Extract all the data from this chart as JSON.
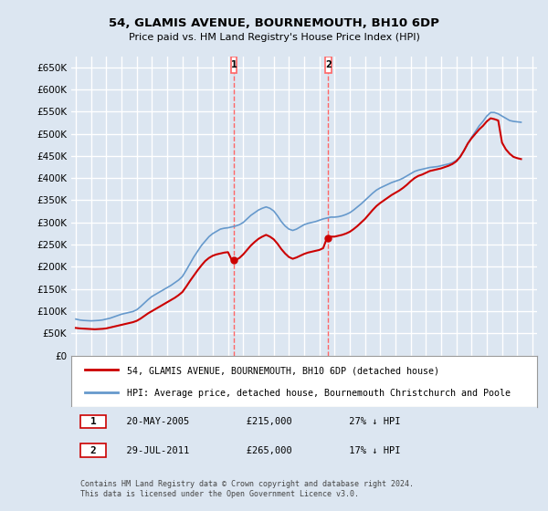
{
  "title": "54, GLAMIS AVENUE, BOURNEMOUTH, BH10 6DP",
  "subtitle": "Price paid vs. HM Land Registry's House Price Index (HPI)",
  "ylabel": "",
  "background_color": "#dce6f1",
  "plot_bg_color": "#dce6f1",
  "grid_color": "#ffffff",
  "ylim": [
    0,
    675000
  ],
  "yticks": [
    0,
    50000,
    100000,
    150000,
    200000,
    250000,
    300000,
    350000,
    400000,
    450000,
    500000,
    550000,
    600000,
    650000
  ],
  "sale1_date": 2005.38,
  "sale1_price": 215000,
  "sale2_date": 2011.57,
  "sale2_price": 265000,
  "legend_line1": "54, GLAMIS AVENUE, BOURNEMOUTH, BH10 6DP (detached house)",
  "legend_line2": "HPI: Average price, detached house, Bournemouth Christchurch and Poole",
  "annotation1": "1     20-MAY-2005          £215,000          27% ↓ HPI",
  "annotation2": "2     29-JUL-2011          £265,000          17% ↓ HPI",
  "footer": "Contains HM Land Registry data © Crown copyright and database right 2024.\nThis data is licensed under the Open Government Licence v3.0.",
  "hpi_years": [
    1995.0,
    1995.25,
    1995.5,
    1995.75,
    1996.0,
    1996.25,
    1996.5,
    1996.75,
    1997.0,
    1997.25,
    1997.5,
    1997.75,
    1998.0,
    1998.25,
    1998.5,
    1998.75,
    1999.0,
    1999.25,
    1999.5,
    1999.75,
    2000.0,
    2000.25,
    2000.5,
    2000.75,
    2001.0,
    2001.25,
    2001.5,
    2001.75,
    2002.0,
    2002.25,
    2002.5,
    2002.75,
    2003.0,
    2003.25,
    2003.5,
    2003.75,
    2004.0,
    2004.25,
    2004.5,
    2004.75,
    2005.0,
    2005.25,
    2005.5,
    2005.75,
    2006.0,
    2006.25,
    2006.5,
    2006.75,
    2007.0,
    2007.25,
    2007.5,
    2007.75,
    2008.0,
    2008.25,
    2008.5,
    2008.75,
    2009.0,
    2009.25,
    2009.5,
    2009.75,
    2010.0,
    2010.25,
    2010.5,
    2010.75,
    2011.0,
    2011.25,
    2011.5,
    2011.75,
    2012.0,
    2012.25,
    2012.5,
    2012.75,
    2013.0,
    2013.25,
    2013.5,
    2013.75,
    2014.0,
    2014.25,
    2014.5,
    2014.75,
    2015.0,
    2015.25,
    2015.5,
    2015.75,
    2016.0,
    2016.25,
    2016.5,
    2016.75,
    2017.0,
    2017.25,
    2017.5,
    2017.75,
    2018.0,
    2018.25,
    2018.5,
    2018.75,
    2019.0,
    2019.25,
    2019.5,
    2019.75,
    2020.0,
    2020.25,
    2020.5,
    2020.75,
    2021.0,
    2021.25,
    2021.5,
    2021.75,
    2022.0,
    2022.25,
    2022.5,
    2022.75,
    2023.0,
    2023.25,
    2023.5,
    2023.75,
    2024.0,
    2024.25
  ],
  "hpi_values": [
    82000,
    80000,
    79000,
    78500,
    78000,
    78500,
    79000,
    80000,
    82000,
    84000,
    87000,
    90000,
    93000,
    95000,
    97000,
    99000,
    103000,
    110000,
    118000,
    126000,
    133000,
    138000,
    143000,
    148000,
    153000,
    158000,
    164000,
    170000,
    178000,
    192000,
    207000,
    222000,
    235000,
    248000,
    258000,
    268000,
    275000,
    280000,
    285000,
    287000,
    288000,
    290000,
    292000,
    295000,
    300000,
    308000,
    316000,
    322000,
    328000,
    332000,
    335000,
    332000,
    326000,
    315000,
    302000,
    292000,
    285000,
    282000,
    285000,
    290000,
    295000,
    298000,
    300000,
    302000,
    305000,
    308000,
    310000,
    312000,
    312000,
    313000,
    315000,
    318000,
    322000,
    328000,
    335000,
    342000,
    350000,
    358000,
    366000,
    373000,
    378000,
    382000,
    386000,
    390000,
    393000,
    396000,
    400000,
    405000,
    410000,
    415000,
    418000,
    420000,
    422000,
    424000,
    425000,
    426000,
    428000,
    430000,
    432000,
    435000,
    440000,
    448000,
    462000,
    478000,
    492000,
    505000,
    518000,
    528000,
    540000,
    548000,
    548000,
    545000,
    540000,
    535000,
    530000,
    528000,
    527000,
    526000
  ],
  "red_years": [
    1995.0,
    1995.25,
    1995.5,
    1995.75,
    1996.0,
    1996.25,
    1996.5,
    1996.75,
    1997.0,
    1997.25,
    1997.5,
    1997.75,
    1998.0,
    1998.25,
    1998.5,
    1998.75,
    1999.0,
    1999.25,
    1999.5,
    1999.75,
    2000.0,
    2000.25,
    2000.5,
    2000.75,
    2001.0,
    2001.25,
    2001.5,
    2001.75,
    2002.0,
    2002.25,
    2002.5,
    2002.75,
    2003.0,
    2003.25,
    2003.5,
    2003.75,
    2004.0,
    2004.25,
    2004.5,
    2004.75,
    2005.0,
    2005.25,
    2005.5,
    2005.75,
    2006.0,
    2006.25,
    2006.5,
    2006.75,
    2007.0,
    2007.25,
    2007.5,
    2007.75,
    2008.0,
    2008.25,
    2008.5,
    2008.75,
    2009.0,
    2009.25,
    2009.5,
    2009.75,
    2010.0,
    2010.25,
    2010.5,
    2010.75,
    2011.0,
    2011.25,
    2011.5,
    2011.75,
    2012.0,
    2012.25,
    2012.5,
    2012.75,
    2013.0,
    2013.25,
    2013.5,
    2013.75,
    2014.0,
    2014.25,
    2014.5,
    2014.75,
    2015.0,
    2015.25,
    2015.5,
    2015.75,
    2016.0,
    2016.25,
    2016.5,
    2016.75,
    2017.0,
    2017.25,
    2017.5,
    2017.75,
    2018.0,
    2018.25,
    2018.5,
    2018.75,
    2019.0,
    2019.25,
    2019.5,
    2019.75,
    2020.0,
    2020.25,
    2020.5,
    2020.75,
    2021.0,
    2021.25,
    2021.5,
    2021.75,
    2022.0,
    2022.25,
    2022.5,
    2022.75,
    2023.0,
    2023.25,
    2023.5,
    2023.75,
    2024.0,
    2024.25
  ],
  "red_values": [
    62000,
    61000,
    60500,
    60000,
    59500,
    59000,
    59500,
    60000,
    61000,
    63000,
    65000,
    67000,
    69000,
    71000,
    73000,
    75000,
    78000,
    83000,
    89000,
    95000,
    100000,
    105000,
    110000,
    115000,
    120000,
    125000,
    130000,
    136000,
    143000,
    155000,
    168000,
    180000,
    192000,
    203000,
    213000,
    220000,
    225000,
    228000,
    230000,
    232000,
    233000,
    215000,
    215000,
    220000,
    228000,
    238000,
    248000,
    256000,
    263000,
    268000,
    272000,
    268000,
    262000,
    252000,
    240000,
    230000,
    222000,
    218000,
    221000,
    225000,
    229000,
    232000,
    234000,
    236000,
    238000,
    242000,
    265000,
    268000,
    268000,
    270000,
    272000,
    275000,
    279000,
    285000,
    292000,
    300000,
    308000,
    318000,
    328000,
    337000,
    344000,
    350000,
    356000,
    362000,
    367000,
    372000,
    378000,
    385000,
    393000,
    400000,
    405000,
    408000,
    412000,
    416000,
    418000,
    420000,
    422000,
    425000,
    428000,
    432000,
    438000,
    448000,
    462000,
    478000,
    490000,
    500000,
    510000,
    518000,
    528000,
    535000,
    533000,
    530000,
    480000,
    465000,
    455000,
    448000,
    445000,
    443000
  ],
  "marker_color_1": "#cc0000",
  "marker_color_2": "#cc0000",
  "vline_color": "#ff6666",
  "red_line_color": "#cc0000",
  "blue_line_color": "#6699cc"
}
